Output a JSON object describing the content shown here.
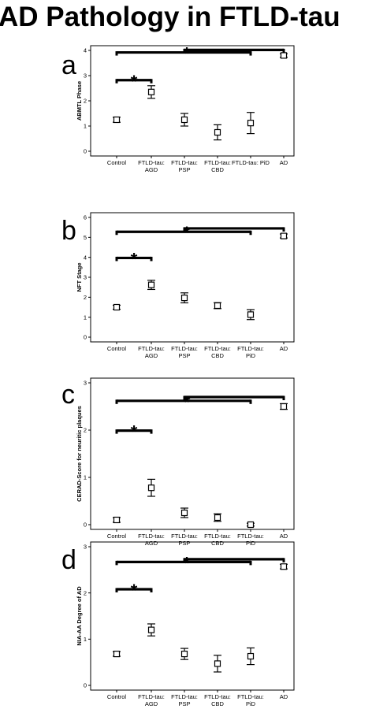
{
  "title": "AD Pathology in FTLD-tau",
  "chart_data": [
    {
      "panel": "a",
      "type": "scatter",
      "ylabel": "ABMTL Phase",
      "ylim": [
        0,
        4
      ],
      "yticks": [
        "0",
        "1",
        "2",
        "3",
        "4"
      ],
      "categories": [
        [
          "Control"
        ],
        [
          "FTLD-tau:",
          "AGD"
        ],
        [
          "FTLD-tau:",
          "PSP"
        ],
        [
          "FTLD-tau:",
          "CBD"
        ],
        [
          "FTLD-tau: PiD"
        ],
        [
          "AD"
        ]
      ],
      "values": [
        1.25,
        2.35,
        1.25,
        0.75,
        1.12,
        3.8
      ],
      "errors": [
        0.1,
        0.25,
        0.25,
        0.3,
        0.42,
        0.07
      ],
      "significance": [
        {
          "from": 0,
          "to": 1,
          "y": 2.82,
          "label": "*"
        },
        {
          "from": 0,
          "to": 4,
          "y": 3.92,
          "label": "*"
        },
        {
          "from": 2,
          "to": 5,
          "y": 4.02,
          "label": ""
        }
      ]
    },
    {
      "panel": "b",
      "type": "scatter",
      "ylabel": "NFT Stage",
      "ylim": [
        0,
        6
      ],
      "yticks": [
        "0",
        "1",
        "2",
        "3",
        "4",
        "5",
        "6"
      ],
      "categories": [
        [
          "Control"
        ],
        [
          "FTLD-tau:",
          "AGD"
        ],
        [
          "FTLD-tau:",
          "PSP"
        ],
        [
          "FTLD-tau:",
          "CBD"
        ],
        [
          "FTLD-tau:",
          "PiD"
        ],
        [
          "AD"
        ]
      ],
      "values": [
        1.5,
        2.62,
        1.97,
        1.58,
        1.13,
        5.07
      ],
      "errors": [
        0.1,
        0.23,
        0.25,
        0.15,
        0.25,
        0.1
      ],
      "significance": [
        {
          "from": 0,
          "to": 1,
          "y": 3.97,
          "label": "*"
        },
        {
          "from": 0,
          "to": 4,
          "y": 5.28,
          "label": "*"
        },
        {
          "from": 2,
          "to": 5,
          "y": 5.45,
          "label": ""
        }
      ]
    },
    {
      "panel": "c",
      "type": "scatter",
      "ylabel": "CERAD-Score for neuritic plaques",
      "ylim": [
        0,
        3
      ],
      "yticks": [
        "0",
        "1",
        "2",
        "3"
      ],
      "categories": [
        [
          "Control"
        ],
        [
          "FTLD-tau:",
          "AGD"
        ],
        [
          "FTLD-tau:",
          "PSP"
        ],
        [
          "FTLD-tau:",
          "CBD"
        ],
        [
          "FTLD-tau:",
          "PiD"
        ],
        [
          "AD"
        ]
      ],
      "values": [
        0.1,
        0.78,
        0.25,
        0.15,
        0.0,
        2.5
      ],
      "errors": [
        0.05,
        0.18,
        0.1,
        0.08,
        0.03,
        0.06
      ],
      "significance": [
        {
          "from": 0,
          "to": 1,
          "y": 1.99,
          "label": "*"
        },
        {
          "from": 0,
          "to": 4,
          "y": 2.62,
          "label": "*"
        },
        {
          "from": 2,
          "to": 5,
          "y": 2.7,
          "label": ""
        }
      ]
    },
    {
      "panel": "d",
      "type": "scatter",
      "ylabel": "NIA-AA Degree of AD",
      "ylim": [
        0,
        3
      ],
      "yticks": [
        "0",
        "1",
        "2",
        "3"
      ],
      "categories": [
        [
          "Control"
        ],
        [
          "FTLD-tau:",
          "AGD"
        ],
        [
          "FTLD-tau:",
          "PSP"
        ],
        [
          "FTLD-tau:",
          "CBD"
        ],
        [
          "FTLD-tau:",
          "PiD"
        ],
        [
          "AD"
        ]
      ],
      "values": [
        0.68,
        1.2,
        0.68,
        0.47,
        0.63,
        2.57
      ],
      "errors": [
        0.05,
        0.13,
        0.12,
        0.18,
        0.18,
        0.05
      ],
      "significance": [
        {
          "from": 0,
          "to": 1,
          "y": 2.08,
          "label": "*"
        },
        {
          "from": 0,
          "to": 4,
          "y": 2.67,
          "label": "*"
        },
        {
          "from": 2,
          "to": 5,
          "y": 2.73,
          "label": ""
        }
      ]
    }
  ]
}
